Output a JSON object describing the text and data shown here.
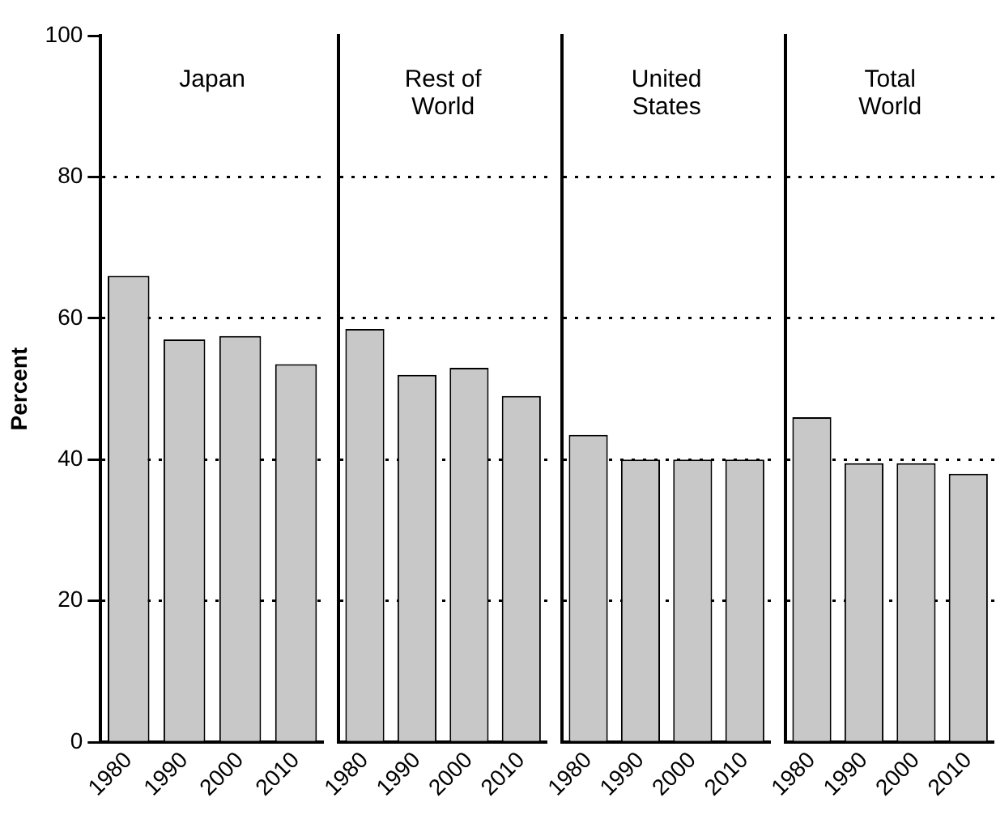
{
  "chart_data": [
    {
      "type": "bar",
      "title": "Japan",
      "ylabel": "Percent",
      "categories": [
        "1980",
        "1990",
        "2000",
        "2010"
      ],
      "values": [
        66,
        57,
        57.5,
        53.5
      ],
      "color": "#c8c8c8",
      "ylim": [
        0,
        100
      ],
      "yticks": [
        0,
        20,
        40,
        60,
        80,
        100
      ],
      "grid": "y",
      "line_style": "dotted",
      "legend": false
    },
    {
      "type": "bar",
      "title": "Rest of World",
      "categories": [
        "1980",
        "1990",
        "2000",
        "2010"
      ],
      "values": [
        58.5,
        52,
        53,
        49
      ],
      "color": "#c8c8c8",
      "ylim": [
        0,
        100
      ],
      "yticks": [
        0,
        20,
        40,
        60,
        80,
        100
      ],
      "grid": "y",
      "line_style": "dotted",
      "legend": false,
      "tick_labels": "x"
    },
    {
      "type": "bar",
      "title": "United States",
      "categories": [
        "1980",
        "1990",
        "2000",
        "2010"
      ],
      "values": [
        43.5,
        40,
        40,
        40
      ],
      "color": "#c8c8c8",
      "ylim": [
        0,
        100
      ],
      "yticks": [
        0,
        20,
        40,
        60,
        80,
        100
      ],
      "grid": "y",
      "line_style": "dotted",
      "legend": false,
      "tick_labels": "x"
    },
    {
      "type": "bar",
      "title": "Total World",
      "categories": [
        "1980",
        "1990",
        "2000",
        "2010"
      ],
      "values": [
        46,
        39.5,
        39.5,
        38
      ],
      "color": "#c8c8c8",
      "ylim": [
        0,
        100
      ],
      "yticks": [
        0,
        20,
        40,
        60,
        80,
        100
      ],
      "grid": "y",
      "line_style": "dotted",
      "legend": false,
      "tick_labels": "x"
    }
  ]
}
